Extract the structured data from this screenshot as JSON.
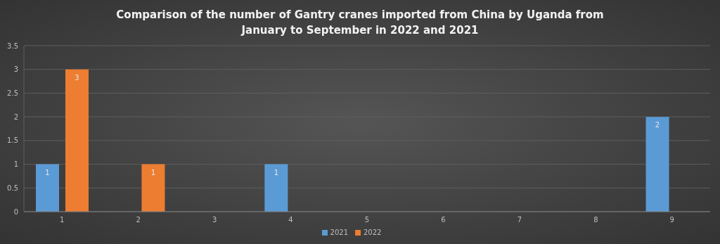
{
  "chart_data": {
    "type": "bar",
    "title": "Comparison of the number of Gantry cranes imported from China by Uganda from January to September in 2022 and 2021",
    "categories": [
      "1",
      "2",
      "3",
      "4",
      "5",
      "6",
      "7",
      "8",
      "9"
    ],
    "series": [
      {
        "name": "2021",
        "color": "#5b9bd5",
        "values": [
          1,
          null,
          null,
          1,
          null,
          null,
          null,
          null,
          2
        ]
      },
      {
        "name": "2022",
        "color": "#ed7d31",
        "values": [
          3,
          1,
          null,
          null,
          null,
          null,
          null,
          null,
          null
        ]
      }
    ],
    "ylim": [
      0,
      3.5
    ],
    "yticks": [
      0,
      0.5,
      1,
      1.5,
      2,
      2.5,
      3,
      3.5
    ],
    "grid": true,
    "legend": "bottom",
    "data_labels": true
  }
}
